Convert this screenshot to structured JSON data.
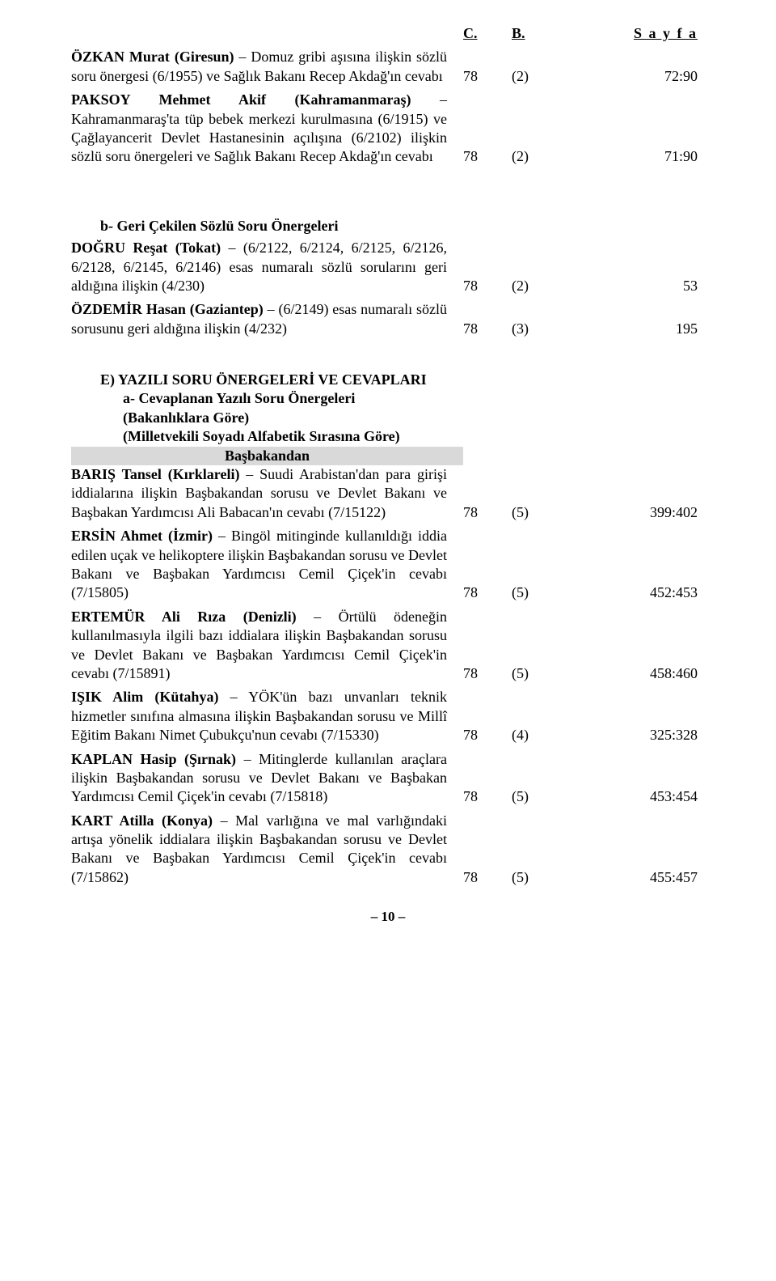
{
  "header": {
    "c": "C.",
    "b": "B.",
    "s": "S a y f a"
  },
  "entries_top": [
    {
      "html": "<span class='bold'>ÖZKAN Murat (Giresun)</span> – Domuz gribi aşısına ilişkin sözlü soru önergesi (6/1955) ve Sağlık Bakanı Recep Akdağ'ın cevabı",
      "c": "78",
      "b": "(2)",
      "s": "72:90"
    },
    {
      "html": "<span class='bold'>PAKSOY Mehmet Akif (Kahramanmaraş)</span> – Kahramanmaraş'ta tüp bebek merkezi kurulmasına (6/1915) ve Çağlayancerit Devlet Hastanesinin açılışına (6/2102) ilişkin sözlü soru önergeleri ve Sağlık Bakanı Recep Akdağ'ın cevabı",
      "c": "78",
      "b": "(2)",
      "s": "71:90"
    }
  ],
  "section_b_heading": "b- Geri Çekilen Sözlü Soru Önergeleri",
  "entries_b": [
    {
      "html": "<span class='bold'>DOĞRU Reşat (Tokat)</span> – (6/2122, 6/2124, 6/2125, 6/2126, 6/2128, 6/2145, 6/2146) esas numaralı sözlü sorularını geri aldığına ilişkin (4/230)",
      "c": "78",
      "b": "(2)",
      "s": "53"
    },
    {
      "html": "<span class='bold'>ÖZDEMİR Hasan (Gaziantep)</span> – (6/2149) esas numaralı sözlü sorusunu geri aldığına ilişkin (4/232)",
      "c": "78",
      "b": "(3)",
      "s": "195"
    }
  ],
  "section_e": {
    "title": "E) YAZILI SORU ÖNERGELERİ VE CEVAPLARI",
    "sub1": "a- Cevaplanan Yazılı Soru Önergeleri",
    "sub2": "(Bakanlıklara Göre)",
    "sub3": "(Milletvekili Soyadı Alfabetik Sırasına Göre)",
    "highlight": "Başbakandan"
  },
  "entries_e": [
    {
      "html": "<span class='bold'>BARIŞ Tansel (Kırklareli)</span> – Suudi Arabistan'dan para girişi iddialarına ilişkin Başbakandan sorusu ve Devlet Bakanı ve Başbakan Yardımcısı Ali Babacan'ın cevabı (7/15122)",
      "c": "78",
      "b": "(5)",
      "s": "399:402"
    },
    {
      "html": "<span class='bold'>ERSİN Ahmet (İzmir)</span> – Bingöl mitinginde kullanıldığı iddia edilen uçak ve helikoptere ilişkin Başbakandan sorusu ve Devlet Bakanı ve Başbakan Yardımcısı Cemil Çiçek'in cevabı (7/15805)",
      "c": "78",
      "b": "(5)",
      "s": "452:453"
    },
    {
      "html": "<span class='bold'>ERTEMÜR Ali Rıza (Denizli)</span> – Örtülü ödeneğin kullanılmasıyla ilgili bazı iddialara ilişkin Başbakandan sorusu ve Devlet Bakanı ve Başbakan Yardımcısı Cemil Çiçek'in cevabı (7/15891)",
      "c": "78",
      "b": "(5)",
      "s": "458:460"
    },
    {
      "html": "<span class='bold'>IŞIK Alim (Kütahya)</span> – YÖK'ün bazı unvanları teknik hizmetler sınıfına almasına ilişkin Başbakandan sorusu ve Millî Eğitim Bakanı Nimet Çubukçu'nun cevabı (7/15330)",
      "c": "78",
      "b": "(4)",
      "s": "325:328"
    },
    {
      "html": "<span class='bold'>KAPLAN Hasip (Şırnak)</span> – Mitinglerde kullanılan araçlara ilişkin Başbakandan sorusu ve Devlet Bakanı ve Başbakan Yardımcısı Cemil Çiçek'in cevabı (7/15818)",
      "c": "78",
      "b": "(5)",
      "s": "453:454"
    },
    {
      "html": "<span class='bold'>KART Atilla (Konya)</span> – Mal varlığına ve mal varlığındaki artışa yönelik iddialara ilişkin Başbakandan sorusu ve Devlet Bakanı ve Başbakan Yardımcısı Cemil Çiçek'in cevabı (7/15862)",
      "c": "78",
      "b": "(5)",
      "s": "455:457"
    }
  ],
  "page_number": "– 10 –"
}
